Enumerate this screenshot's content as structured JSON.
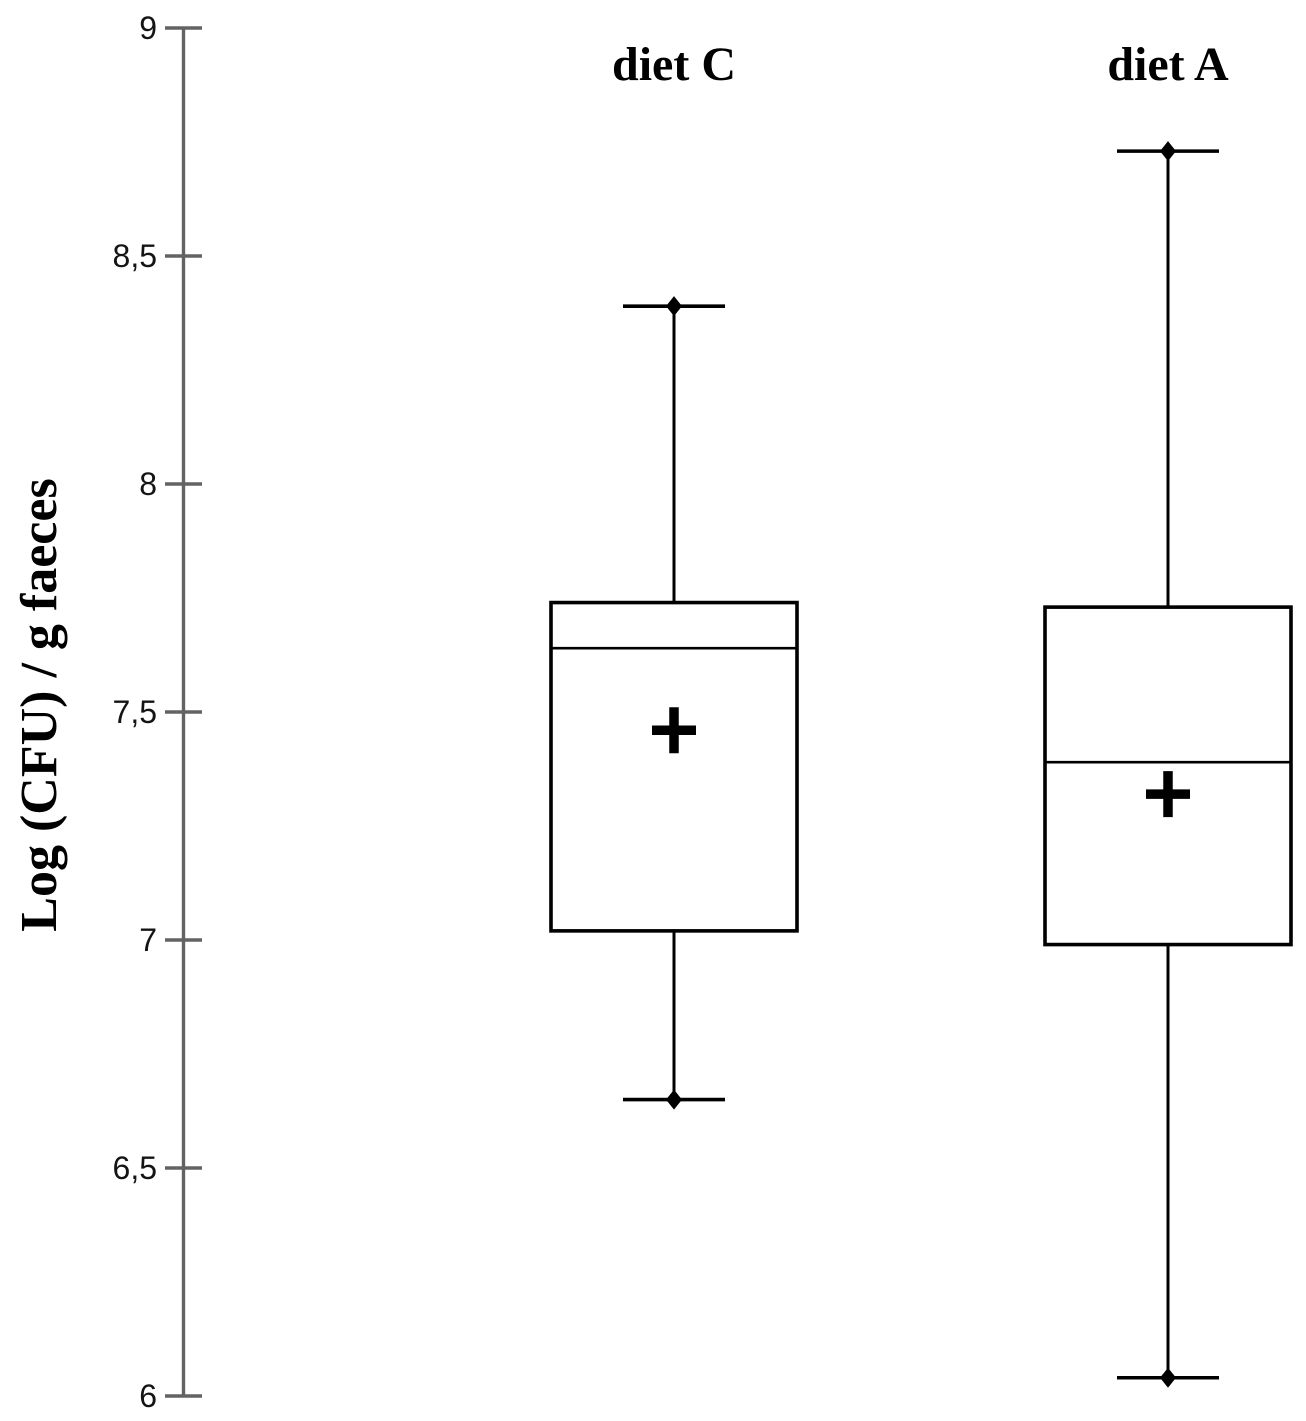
{
  "chart_data": {
    "type": "boxplot",
    "title": "",
    "y_axis": {
      "label": "Log (CFU) / g faeces",
      "ylim": [
        6,
        9
      ],
      "tick_step": 0.5,
      "ticks": [
        {
          "value": 9,
          "label": "9"
        },
        {
          "value": 8.5,
          "label": "8,5"
        },
        {
          "value": 8,
          "label": "8"
        },
        {
          "value": 7.5,
          "label": "7,5"
        },
        {
          "value": 7,
          "label": "7"
        },
        {
          "value": 6.5,
          "label": "6,5"
        },
        {
          "value": 6,
          "label": "6"
        }
      ]
    },
    "series": [
      {
        "name": "diet C",
        "whisker_low": 6.65,
        "q1": 7.02,
        "median": 7.64,
        "mean": 7.46,
        "q3": 7.74,
        "whisker_high": 8.39
      },
      {
        "name": "diet A",
        "whisker_low": 6.04,
        "q1": 6.99,
        "median": 7.39,
        "mean": 7.32,
        "q3": 7.73,
        "whisker_high": 8.73
      }
    ],
    "markers": {
      "mean_marker": "plus-cross",
      "whisker_end_marker": "filled-diamond"
    },
    "colors": {
      "axis": "#636363",
      "box_stroke": "#000000",
      "text": "#000000",
      "background": "#ffffff"
    }
  }
}
